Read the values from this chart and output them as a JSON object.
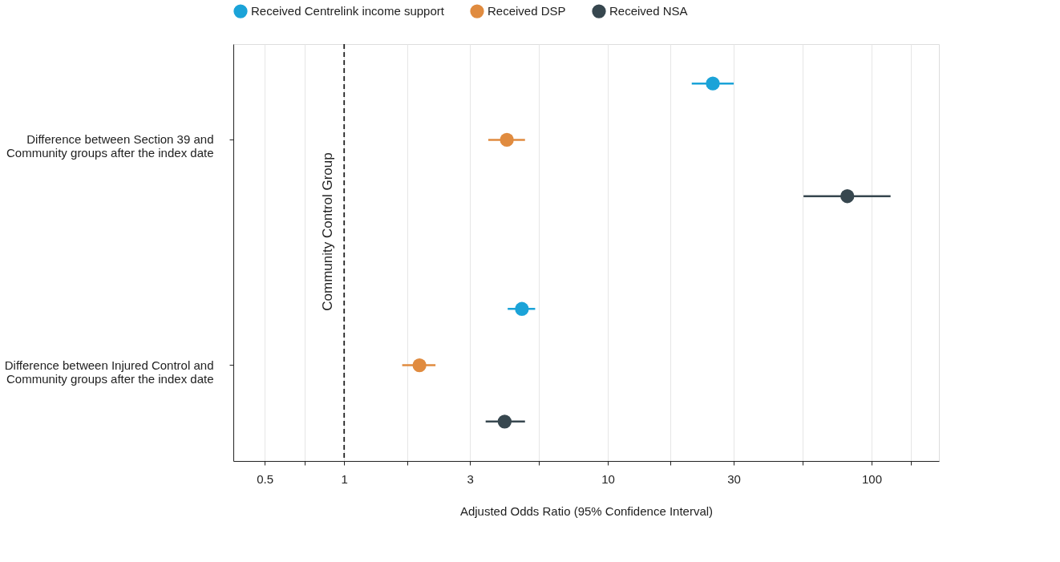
{
  "chart_data": {
    "type": "scatter",
    "xlabel": "Adjusted Odds Ratio (95% Confidence Interval)",
    "categories": [
      "Difference between Section 39 and Community groups after the index date",
      "Difference between Injured Control and Community groups after the index date"
    ],
    "orientation": "horizontal",
    "series": [
      {
        "name": "Received Centrelink income support",
        "color": "#1ba3d8",
        "values": [
          25.0,
          4.72
        ],
        "errors": [
          [
            20.8,
            30.0
          ],
          [
            4.17,
            5.3
          ]
        ]
      },
      {
        "name": "Received DSP",
        "color": "#e08b3f",
        "values": [
          4.14,
          1.93
        ],
        "errors": [
          [
            3.52,
            4.85
          ],
          [
            1.66,
            2.22
          ]
        ]
      },
      {
        "name": "Received NSA",
        "color": "#37474f",
        "values": [
          80.9,
          4.06
        ],
        "errors": [
          [
            55.2,
            118
          ],
          [
            3.44,
            4.85
          ]
        ]
      }
    ],
    "log": "x",
    "xlim": [
      0.38,
      180
    ],
    "xticks": [
      0.5,
      {
        "value": 0.707,
        "label": null
      },
      1,
      {
        "value": 1.73,
        "label": null
      },
      3,
      {
        "value": 5.48,
        "label": null
      },
      10,
      {
        "value": 17.3,
        "label": null
      },
      30,
      {
        "value": 54.8,
        "label": null
      },
      100,
      {
        "value": 141,
        "label": null
      }
    ],
    "grid": "x",
    "legend": "top",
    "marker": "circle",
    "ref_lines": [
      {
        "axis": "x",
        "value": 1,
        "label": "Community Control Group",
        "line_style": "dashed",
        "color": "#222222"
      }
    ]
  }
}
